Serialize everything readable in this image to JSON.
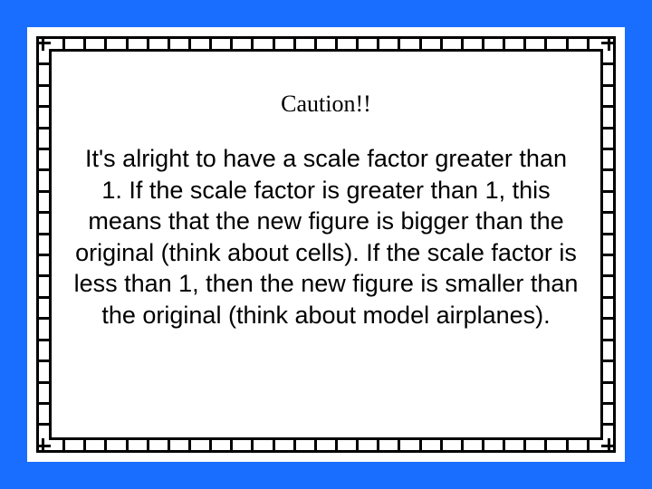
{
  "slide": {
    "heading": "Caution!!",
    "body": "It's alright to have a scale factor greater than 1. If the scale factor is greater than 1, this means that the new figure is bigger than the original (think about cells). If the scale factor is less than 1, then the new figure is smaller than the original (think about model airplanes)."
  },
  "style": {
    "background_color": "#1a6eff",
    "frame_background": "#ffffff",
    "border_color": "#000000",
    "heading_font": "Georgia, serif",
    "heading_fontsize": 26,
    "body_font": "Comic Sans MS, cursive",
    "body_fontsize": 27,
    "text_color": "#000000",
    "tick_count_horizontal": 28,
    "tick_count_vertical": 20
  }
}
